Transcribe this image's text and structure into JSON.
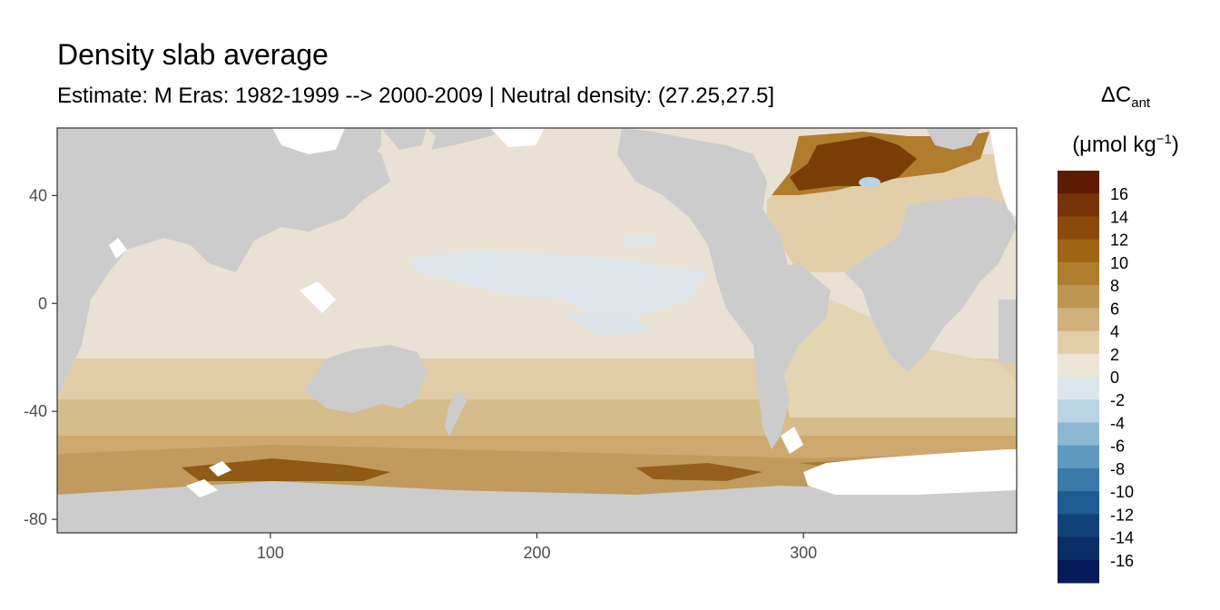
{
  "title": "Density slab average",
  "subtitle": "Estimate: M Eras: 1982-1999 --> 2000-2009 | Neutral density: (27.25,27.5]",
  "x_axis": {
    "ticks": [
      "100",
      "200",
      "300"
    ],
    "tick_values": [
      100,
      200,
      300
    ],
    "range": [
      20,
      380
    ]
  },
  "y_axis": {
    "ticks": [
      "40",
      "0",
      "-40",
      "-80"
    ],
    "tick_values": [
      40,
      0,
      -40,
      -80
    ],
    "range": [
      -85,
      65
    ]
  },
  "legend": {
    "title_symbol": "ΔC",
    "title_sub": "ant",
    "unit_main": "(μmol kg",
    "unit_sup": "−1",
    "unit_close": ")",
    "labels": [
      "16",
      "14",
      "12",
      "10",
      "8",
      "6",
      "4",
      "2",
      "0",
      "-2",
      "-4",
      "-6",
      "-8",
      "-10",
      "-12",
      "-14",
      "-16"
    ],
    "bin_colors": [
      "#5e1a03",
      "#773205",
      "#8c4a0a",
      "#a06514",
      "#b07c2e",
      "#bf9553",
      "#d0b07c",
      "#e2cfa9",
      "#ece5d8",
      "#dbe6ec",
      "#b9d4e3",
      "#8db8d2",
      "#5f99bf",
      "#3a79aa",
      "#1f5c93",
      "#12427a",
      "#0b2d68",
      "#06195b"
    ]
  },
  "colors": {
    "land": "#cccccc",
    "no_data": "#ffffff",
    "ocean_base": "#e9e1d3",
    "panel_border": "#333333"
  }
}
